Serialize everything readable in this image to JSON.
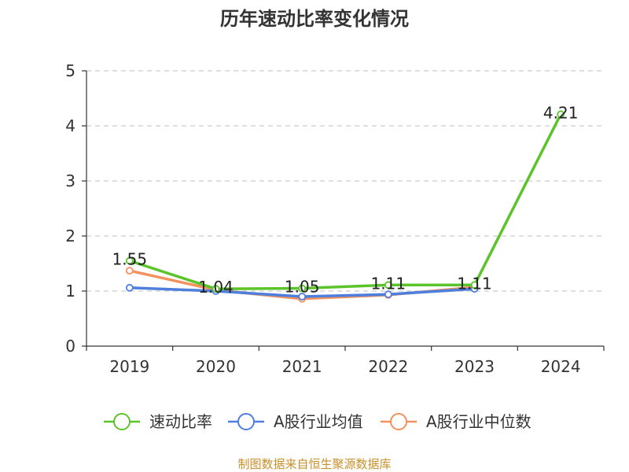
{
  "source_note": "制图数据来自恒生聚源数据库",
  "colors": {
    "axis": "#333333",
    "grid": "#cccccc",
    "source": "#c8902a"
  },
  "chart_data": {
    "type": "line",
    "title": "历年速动比率变化情况",
    "categories": [
      "2019",
      "2020",
      "2021",
      "2022",
      "2023",
      "2024"
    ],
    "ylim": [
      0,
      5
    ],
    "yticks": [
      0,
      1,
      2,
      3,
      4,
      5
    ],
    "grid": true,
    "legend_position": "bottom",
    "series": [
      {
        "name": "速动比率",
        "color": "#5cc42b",
        "values": [
          1.55,
          1.04,
          1.05,
          1.11,
          1.11,
          4.21
        ],
        "labels": [
          "1.55",
          "1.04",
          "1.05",
          "1.11",
          "1.11",
          "4.21"
        ]
      },
      {
        "name": "A股行业均值",
        "color": "#4f7fdc",
        "values": [
          1.06,
          1.0,
          0.9,
          0.94,
          1.04,
          null
        ]
      },
      {
        "name": "A股行业中位数",
        "color": "#f39160",
        "values": [
          1.37,
          1.02,
          0.86,
          0.93,
          1.07,
          null
        ]
      }
    ]
  }
}
